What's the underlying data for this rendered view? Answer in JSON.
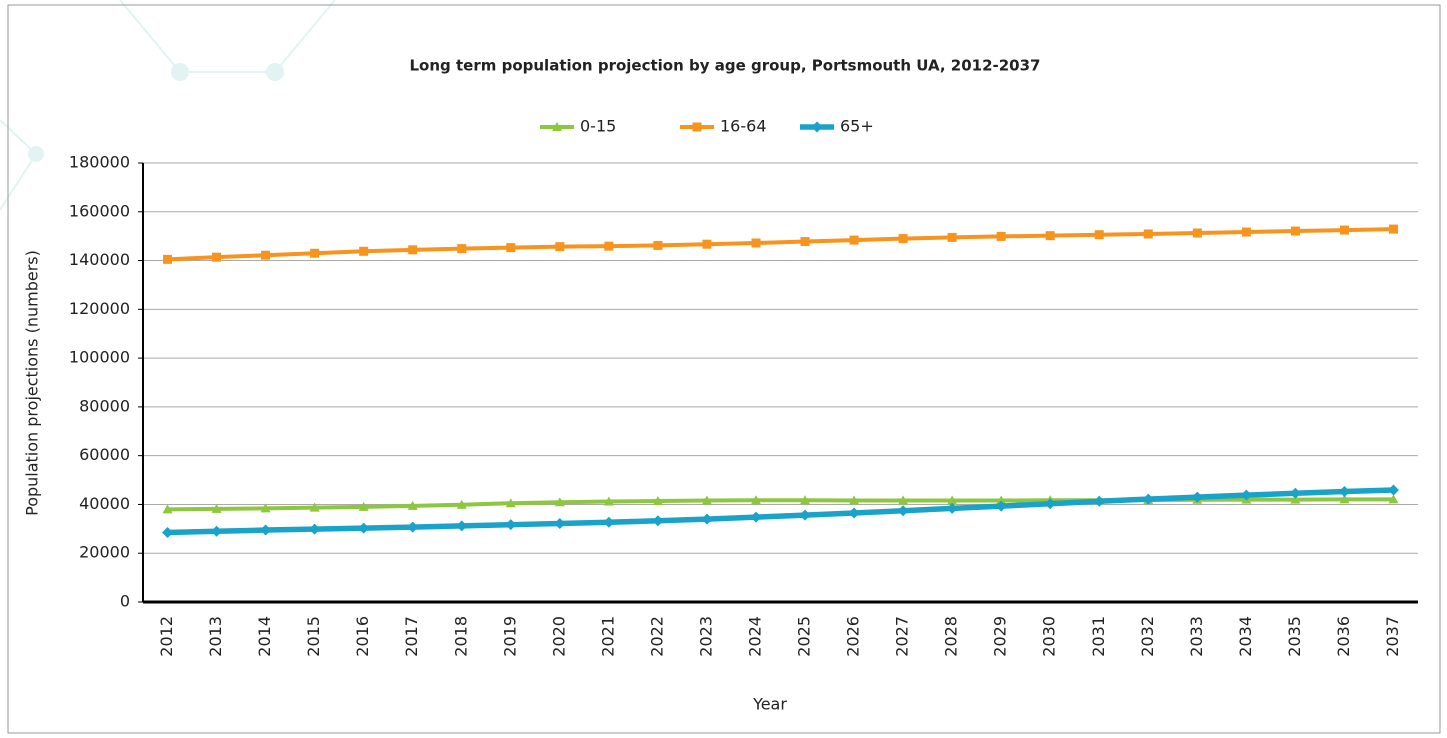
{
  "chart_data": {
    "type": "line",
    "title": "Long term population projection by age group, Portsmouth UA, 2012-2037",
    "x_label": "Year",
    "y_label": "Population projections (numbers)",
    "categories": [
      "2012",
      "2013",
      "2014",
      "2015",
      "2016",
      "2017",
      "2018",
      "2019",
      "2020",
      "2021",
      "2022",
      "2023",
      "2024",
      "2025",
      "2026",
      "2027",
      "2028",
      "2029",
      "2030",
      "2031",
      "2032",
      "2033",
      "2034",
      "2035",
      "2036",
      "2037"
    ],
    "series": [
      {
        "name": "0-15",
        "color": "#8dc63f",
        "values": [
          38000,
          38200,
          38400,
          38700,
          39000,
          39400,
          39900,
          40500,
          40900,
          41200,
          41400,
          41600,
          41700,
          41700,
          41600,
          41600,
          41600,
          41600,
          41700,
          41700,
          41800,
          41900,
          42000,
          42000,
          42100,
          42100
        ]
      },
      {
        "name": "16-64",
        "color": "#f7941d",
        "values": [
          140500,
          141400,
          142200,
          143000,
          143800,
          144400,
          144900,
          145300,
          145700,
          145900,
          146200,
          146700,
          147200,
          147800,
          148400,
          149000,
          149500,
          149900,
          150200,
          150600,
          150900,
          151300,
          151700,
          152100,
          152500,
          152900
        ]
      },
      {
        "name": "65+",
        "color": "#1aa3c8",
        "values": [
          28500,
          29000,
          29500,
          29900,
          30300,
          30700,
          31200,
          31700,
          32200,
          32700,
          33300,
          34000,
          34800,
          35600,
          36500,
          37400,
          38400,
          39300,
          40300,
          41300,
          42200,
          43000,
          43800,
          44600,
          45300,
          45900
        ]
      }
    ],
    "ylim": [
      0,
      180000
    ],
    "yticks": [
      0,
      20000,
      40000,
      60000,
      80000,
      100000,
      120000,
      140000,
      160000,
      180000
    ],
    "grid": true,
    "legend": "top"
  }
}
